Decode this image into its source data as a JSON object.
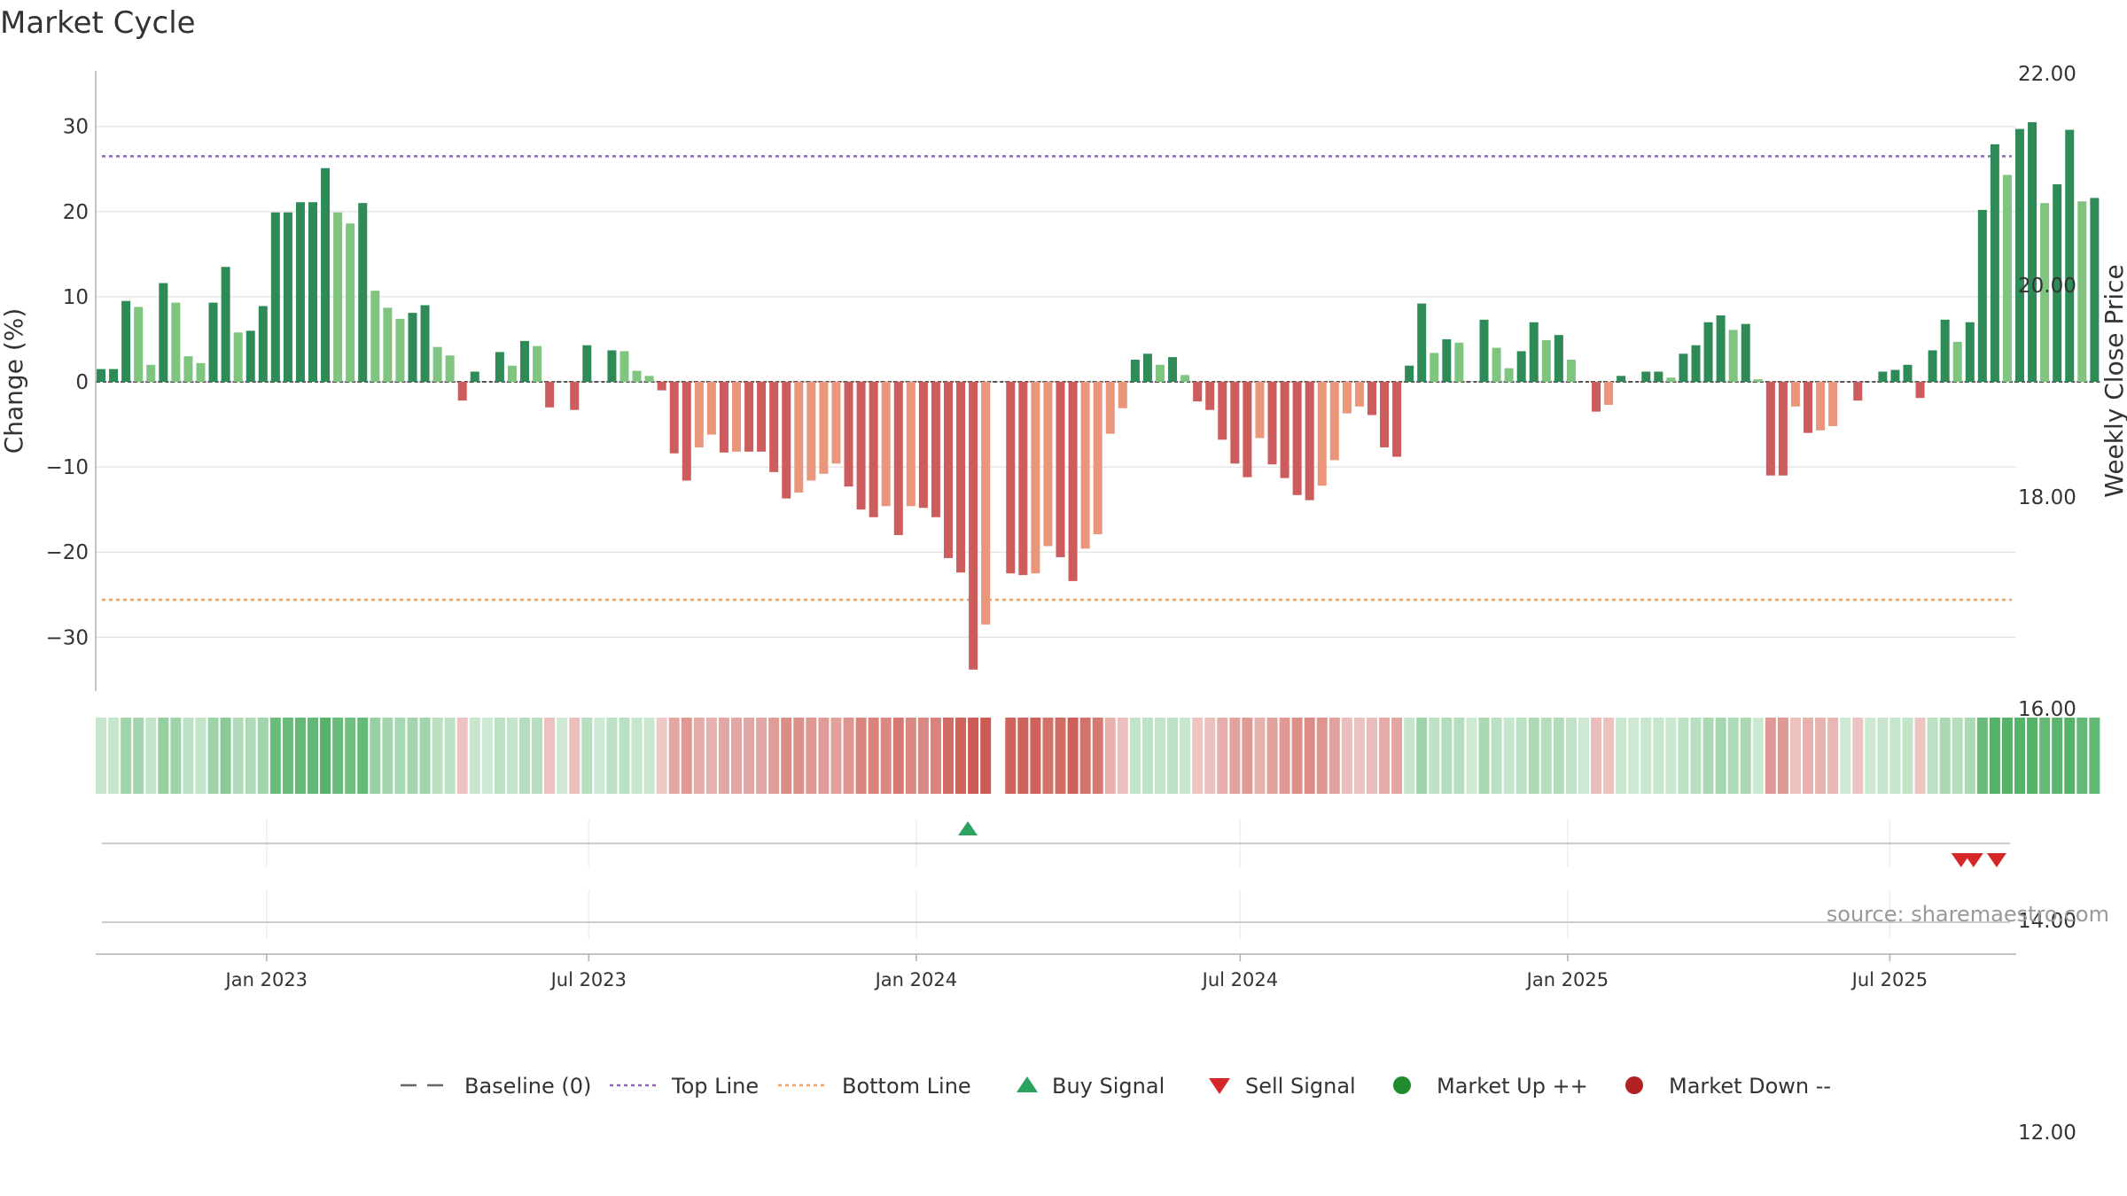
{
  "page": {
    "title": "Market Cycle"
  },
  "chart_data": {
    "type": "bar",
    "title": "Market Cycle",
    "ylabel": "Change (%)",
    "y2label": "Weekly Close Price",
    "ylim": [
      -36,
      36
    ],
    "y2lim": [
      10.65,
      22.0
    ],
    "yticks": [
      30,
      20,
      10,
      0,
      -10,
      -20,
      -30
    ],
    "ytick_labels": [
      "30",
      "20",
      "10",
      "0",
      "−10",
      "−20",
      "−30"
    ],
    "y2ticks": [
      22.0,
      20.0,
      18.0,
      16.0,
      14.0,
      12.0
    ],
    "y2tick_labels": [
      "22.00",
      "20.00",
      "18.00",
      "16.00",
      "14.00",
      "12.00"
    ],
    "start_date": "2022-09-30",
    "step_days": 7,
    "xlim": [
      "2022-09-27",
      "2025-09-10"
    ],
    "xticks": [
      "2023-01-01",
      "2023-07-01",
      "2024-01-01",
      "2024-07-01",
      "2025-01-01",
      "2025-07-01"
    ],
    "xtick_labels": [
      "Jan 2023",
      "Jul 2023",
      "Jan 2024",
      "Jul 2024",
      "Jan 2025",
      "Jul 2025"
    ],
    "series": [
      {
        "name": "Change (%)",
        "values": [
          1.5,
          1.5,
          9.5,
          8.8,
          2.0,
          11.6,
          9.3,
          3.0,
          2.2,
          9.3,
          13.5,
          5.8,
          6.0,
          8.9,
          19.9,
          19.9,
          21.1,
          21.1,
          25.1,
          19.9,
          18.6,
          21.0,
          10.7,
          8.7,
          7.4,
          8.1,
          9.0,
          4.1,
          3.1,
          -2.2,
          1.2,
          0.0,
          3.5,
          1.9,
          4.8,
          4.2,
          -3.0,
          0.0,
          -3.3,
          4.3,
          0.0,
          3.7,
          3.6,
          1.3,
          0.7,
          -1.0,
          -8.4,
          -11.6,
          -7.7,
          -6.2,
          -8.3,
          -8.2,
          -8.2,
          -8.2,
          -10.6,
          -13.7,
          -13.0,
          -11.6,
          -10.8,
          -9.6,
          -12.3,
          -15.0,
          -15.9,
          -14.6,
          -18.0,
          -14.6,
          -14.8,
          -15.9,
          -20.7,
          -22.4,
          -33.8,
          -28.5,
          0.0,
          -22.5,
          -22.7,
          -22.5,
          -19.3,
          -20.6,
          -23.4,
          -19.6,
          -17.9,
          -6.1,
          -3.1,
          2.6,
          3.3,
          2.0,
          2.9,
          0.8,
          -2.3,
          -3.3,
          -6.8,
          -9.6,
          -11.2,
          -6.6,
          -9.7,
          -11.3,
          -13.3,
          -13.9,
          -12.2,
          -9.2,
          -3.7,
          -2.9,
          -3.9,
          -7.7,
          -8.8,
          1.9,
          9.2,
          3.4,
          5.0,
          4.6,
          0.0,
          7.3,
          4.0,
          1.6,
          3.6,
          7.0,
          4.9,
          5.5,
          2.6,
          0.0,
          -3.5,
          -2.7,
          0.7,
          0.0,
          1.2,
          1.2,
          0.5,
          3.3,
          4.3,
          7.0,
          7.8,
          6.1,
          6.8,
          0.3,
          -11.0,
          -11.0,
          -2.9,
          -6.0,
          -5.7,
          -5.2,
          0.0,
          -2.2,
          0.0,
          1.2,
          1.4,
          2.0,
          -1.9,
          3.7,
          7.3,
          4.7,
          7.0,
          20.2,
          27.9,
          24.3,
          29.7,
          30.5,
          21.0,
          23.2,
          29.6,
          21.2,
          21.6
        ]
      },
      {
        "name": "Baseline (0)",
        "value": 0
      },
      {
        "name": "Top Line",
        "value": 26.5
      },
      {
        "name": "Bottom Line",
        "value": -25.6
      },
      {
        "name": "Buy Signal",
        "dates": [
          "2024-01-30"
        ]
      },
      {
        "name": "Sell Signal",
        "dates": [
          "2025-08-10",
          "2025-08-17",
          "2025-08-30"
        ]
      },
      {
        "name": "Market Up ++",
        "dates": []
      },
      {
        "name": "Market Down --",
        "dates": []
      }
    ],
    "legend": {
      "position": "bottom-center",
      "items": [
        {
          "label": "Baseline (0)",
          "symbol": "dash",
          "color": "#666666"
        },
        {
          "label": "Top Line",
          "symbol": "dotted",
          "color": "#9467bd"
        },
        {
          "label": "Bottom Line",
          "symbol": "dotted",
          "color": "#f0a35e"
        },
        {
          "label": "Buy Signal",
          "symbol": "triangle-up",
          "color": "#2ca25f"
        },
        {
          "label": "Sell Signal",
          "symbol": "triangle-down",
          "color": "#d62728"
        },
        {
          "label": "Market Up ++",
          "symbol": "circle",
          "color": "#1f8b2c"
        },
        {
          "label": "Market Down --",
          "symbol": "circle",
          "color": "#b22222"
        }
      ]
    },
    "grid": true,
    "annotation": "source: sharemaestro.com",
    "colors": {
      "up_strong": "#2e8b57",
      "up_light": "#7fc47f",
      "down_strong": "#cd5c5c",
      "down_light": "#e9967a",
      "top_line": "#9467bd",
      "bottom_line": "#f0a35e",
      "buy": "#2ca25f",
      "sell": "#d62728",
      "heat_up": "#4caf60",
      "heat_down": "#c9534a"
    }
  }
}
